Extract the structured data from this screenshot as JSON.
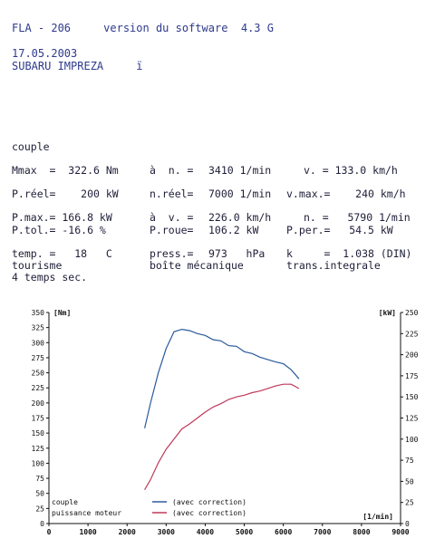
{
  "header": {
    "line1": "FLA - 206     version du software  4.3 G",
    "date": "17.05.2003",
    "vehicle": "SUBARU IMPREZA     ï"
  },
  "section_title": "couple",
  "rows": [
    [
      "Mmax  =  322.6 Nm",
      "à  n. =",
      "3410 1/min",
      "v. = 133.0 km/h"
    ],
    [
      "P.réel=    200 kW",
      "n.réel=",
      "7000 1/min",
      "v.max.=    240 km/h"
    ],
    [
      "P.max.= 166.8 kW",
      "à  v. =",
      "226.0 km/h",
      "n. =   5790 1/min"
    ],
    [
      "P.tol.= -16.6 %",
      "P.roue=",
      "106.2 kW",
      "P.per.=   54.5 kW"
    ],
    [
      "temp. =   18   C",
      "press.=",
      "973   hPa",
      "k     =  1.038 (DIN)"
    ]
  ],
  "notes": {
    "col1": "tourisme",
    "col2": "boîte mécanique",
    "col3": "trans.integrale",
    "line2": "4 temps sec."
  },
  "chart_data": {
    "type": "line",
    "xlabel": "[1/min]",
    "y_left_label": "[Nm]",
    "y_right_label": "[kW]",
    "x_ticks": [
      "0",
      "1000",
      "2000",
      "3000",
      "4000",
      "5000",
      "6000",
      "7000",
      "8000",
      "9000"
    ],
    "y_left_ticks": [
      "0",
      "25",
      "50",
      "75",
      "100",
      "125",
      "150",
      "175",
      "200",
      "225",
      "250",
      "275",
      "300",
      "325",
      "350"
    ],
    "y_right_ticks": [
      "0",
      "25",
      "50",
      "75",
      "100",
      "125",
      "150",
      "175",
      "200",
      "225",
      "250"
    ],
    "xlim": [
      0,
      9000
    ],
    "y_left_lim": [
      0,
      350
    ],
    "y_right_lim": [
      0,
      250
    ],
    "legend": [
      {
        "name": "couple",
        "note": "(avec correction)",
        "color": "#2a5a9c"
      },
      {
        "name": "puissance moteur",
        "note": "(avec correction)",
        "color": "#c0385a"
      }
    ],
    "series": [
      {
        "name": "couple",
        "axis": "left",
        "color": "#2a5a9c",
        "x": [
          2450,
          2600,
          2800,
          3000,
          3200,
          3400,
          3600,
          3800,
          4000,
          4200,
          4400,
          4600,
          4800,
          5000,
          5200,
          5400,
          5600,
          5800,
          6000,
          6200,
          6400
        ],
        "y": [
          158,
          200,
          250,
          290,
          318,
          322,
          320,
          315,
          312,
          305,
          303,
          295,
          294,
          285,
          282,
          276,
          272,
          268,
          265,
          255,
          240
        ]
      },
      {
        "name": "puissance moteur",
        "axis": "right",
        "color": "#c0385a",
        "x": [
          2450,
          2600,
          2800,
          3000,
          3200,
          3400,
          3600,
          3800,
          4000,
          4200,
          4400,
          4600,
          4800,
          5000,
          5200,
          5400,
          5600,
          5800,
          6000,
          6200,
          6400
        ],
        "y": [
          40,
          52,
          72,
          88,
          100,
          112,
          118,
          125,
          132,
          138,
          142,
          147,
          150,
          152,
          155,
          157,
          160,
          163,
          165,
          165,
          160
        ]
      }
    ]
  }
}
